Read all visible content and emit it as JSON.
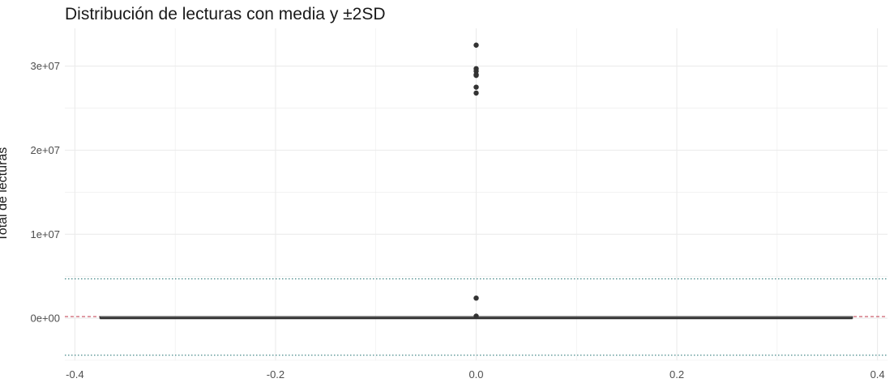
{
  "chart_data": {
    "type": "boxplot",
    "title": "Distribución de lecturas con media y ±2SD",
    "xlabel": "",
    "ylabel": "Total de lecturas",
    "xlim": [
      -0.41,
      0.41
    ],
    "ylim": [
      -5000000,
      34500000
    ],
    "x_ticks": [
      -0.4,
      -0.2,
      0.0,
      0.2,
      0.4
    ],
    "x_tick_labels": [
      "-0.4",
      "-0.2",
      "0.0",
      "0.2",
      "0.4"
    ],
    "y_ticks": [
      0,
      10000000,
      20000000,
      30000000
    ],
    "y_tick_labels": [
      "0e+00",
      "1e+07",
      "2e+07",
      "3e+07"
    ],
    "grid": true,
    "box": {
      "x": 0.0,
      "width": 0.75,
      "q1": 0,
      "median": 0,
      "q3": 50000,
      "whisker_low": 0,
      "whisker_high": 100000
    },
    "outliers": [
      32500000,
      29700000,
      29400000,
      29000000,
      28900000,
      27500000,
      26800000,
      2400000,
      250000
    ],
    "mean": 200000,
    "plus_2sd": 4700000,
    "minus_2sd": -4400000,
    "colors": {
      "mean_line": "#c0394b",
      "sd_lines": "#1a6e6e",
      "box": "#333333",
      "points": "#333333",
      "grid": "#ebebeb"
    }
  }
}
